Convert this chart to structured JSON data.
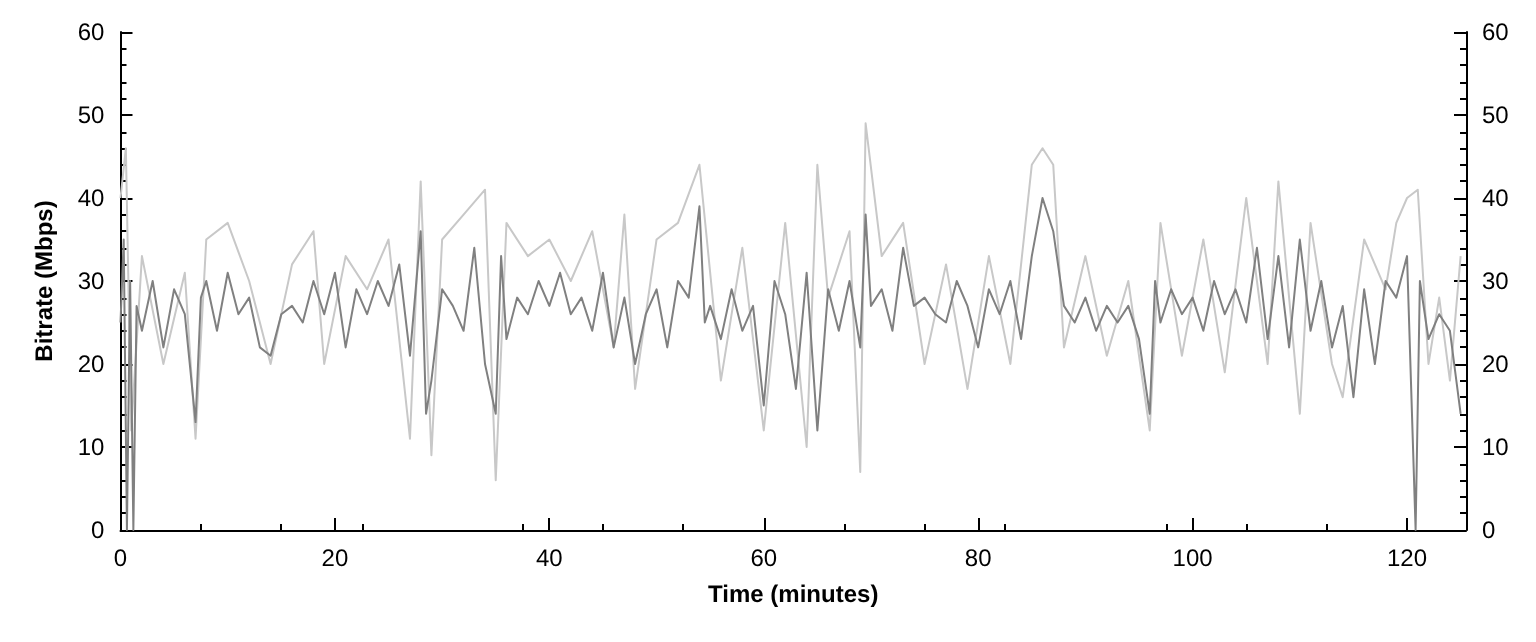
{
  "chart_data": {
    "type": "line",
    "xlabel": "Time (minutes)",
    "ylabel": "Bitrate (Mbps)",
    "xlim": [
      0,
      125.5
    ],
    "xticks": [
      0,
      20,
      40,
      60,
      80,
      100,
      120
    ],
    "ylim": [
      0,
      60
    ],
    "yticks": [
      0,
      10,
      20,
      30,
      40,
      50,
      60
    ],
    "y2lim": [
      0,
      60
    ],
    "y2ticks": [
      0,
      10,
      20,
      30,
      40,
      50,
      60
    ],
    "grid": false,
    "marker": "none",
    "line_style": "solid",
    "series": [
      {
        "color": "#c8c8c8",
        "x": [
          0,
          0.5,
          1,
          2,
          4,
          6,
          7,
          8,
          10,
          12,
          14,
          16,
          18,
          19,
          21,
          23,
          25,
          27,
          28,
          29,
          30,
          32,
          34,
          35,
          36,
          38,
          40,
          42,
          44,
          46,
          47,
          48,
          50,
          52,
          54,
          56,
          58,
          60,
          62,
          64,
          65,
          66,
          68,
          69,
          69.5,
          71,
          73,
          75,
          77,
          79,
          81,
          83,
          85,
          86,
          87,
          88,
          90,
          92,
          94,
          96,
          97,
          99,
          101,
          103,
          105,
          107,
          108,
          110,
          111,
          113,
          114,
          116,
          118,
          119,
          120,
          121,
          122,
          123,
          124,
          125
        ],
        "values": [
          40,
          46,
          12,
          33,
          20,
          31,
          11,
          35,
          37,
          30,
          20,
          32,
          36,
          20,
          33,
          29,
          35,
          11,
          42,
          9,
          35,
          38,
          41,
          6,
          37,
          33,
          35,
          30,
          36,
          22,
          38,
          17,
          35,
          37,
          44,
          18,
          34,
          12,
          37,
          10,
          44,
          28,
          36,
          7,
          49,
          33,
          37,
          20,
          32,
          17,
          33,
          20,
          44,
          46,
          44,
          22,
          33,
          21,
          30,
          12,
          37,
          21,
          35,
          19,
          40,
          20,
          42,
          14,
          37,
          20,
          16,
          35,
          29,
          37,
          40,
          41,
          20,
          28,
          18,
          33
        ]
      },
      {
        "color": "#808080",
        "x": [
          0,
          0.3,
          0.6,
          0.9,
          1.2,
          1.5,
          2,
          3,
          4,
          5,
          6,
          7,
          7.5,
          8,
          9,
          10,
          11,
          12,
          13,
          14,
          15,
          16,
          17,
          18,
          19,
          20,
          21,
          22,
          23,
          24,
          25,
          26,
          27,
          28,
          28.5,
          29,
          30,
          31,
          32,
          33,
          34,
          35,
          35.5,
          36,
          37,
          38,
          39,
          40,
          41,
          42,
          43,
          44,
          45,
          46,
          47,
          48,
          49,
          50,
          51,
          52,
          53,
          54,
          54.5,
          55,
          56,
          57,
          58,
          59,
          60,
          61,
          62,
          63,
          64,
          65,
          66,
          67,
          68,
          69,
          69.5,
          70,
          71,
          72,
          73,
          74,
          75,
          76,
          77,
          78,
          79,
          80,
          81,
          82,
          83,
          84,
          85,
          86,
          87,
          88,
          89,
          90,
          91,
          92,
          93,
          94,
          95,
          96,
          96.5,
          97,
          98,
          99,
          100,
          101,
          102,
          103,
          104,
          105,
          106,
          107,
          108,
          109,
          110,
          111,
          112,
          113,
          114,
          115,
          116,
          117,
          118,
          119,
          120,
          120.8,
          121.2,
          122,
          123,
          124,
          125
        ],
        "values": [
          25,
          35,
          0,
          30,
          0,
          27,
          24,
          30,
          22,
          29,
          26,
          13,
          28,
          30,
          24,
          31,
          26,
          28,
          22,
          21,
          26,
          27,
          25,
          30,
          26,
          31,
          22,
          29,
          26,
          30,
          27,
          32,
          21,
          36,
          14,
          18,
          29,
          27,
          24,
          34,
          20,
          14,
          33,
          23,
          28,
          26,
          30,
          27,
          31,
          26,
          28,
          24,
          31,
          22,
          28,
          20,
          26,
          29,
          22,
          30,
          28,
          39,
          25,
          27,
          23,
          29,
          24,
          27,
          15,
          30,
          26,
          17,
          31,
          12,
          29,
          24,
          30,
          22,
          38,
          27,
          29,
          24,
          34,
          27,
          28,
          26,
          25,
          30,
          27,
          22,
          29,
          26,
          30,
          23,
          33,
          40,
          36,
          27,
          25,
          28,
          24,
          27,
          25,
          27,
          23,
          14,
          30,
          25,
          29,
          26,
          28,
          24,
          30,
          26,
          29,
          25,
          34,
          23,
          33,
          22,
          35,
          24,
          30,
          22,
          27,
          16,
          29,
          20,
          30,
          28,
          33,
          0,
          30,
          23,
          26,
          24,
          14
        ]
      }
    ]
  }
}
